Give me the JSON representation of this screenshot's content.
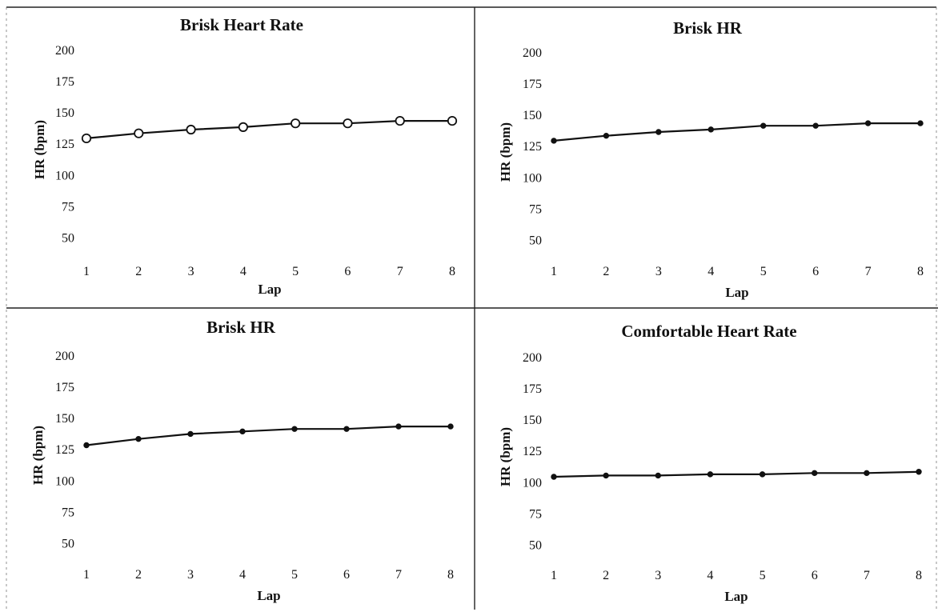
{
  "chart_data": [
    {
      "type": "line",
      "title": "Brisk Heart Rate",
      "xlabel": "Lap",
      "ylabel": "HR (bpm)",
      "x": [
        1,
        2,
        3,
        4,
        5,
        6,
        7,
        8
      ],
      "y_ticks": [
        50,
        75,
        100,
        125,
        150,
        175,
        200
      ],
      "ylim": [
        40,
        200
      ],
      "grid": false,
      "marker": "open-circle",
      "series": [
        {
          "values": [
            129,
            133,
            136,
            138,
            141,
            141,
            143,
            143
          ]
        }
      ]
    },
    {
      "type": "line",
      "title": "Brisk HR",
      "xlabel": "Lap",
      "ylabel": "HR (bpm)",
      "x": [
        1,
        2,
        3,
        4,
        5,
        6,
        7,
        8
      ],
      "y_ticks": [
        50,
        75,
        100,
        125,
        150,
        175,
        200
      ],
      "ylim": [
        40,
        200
      ],
      "grid": false,
      "marker": "dot",
      "series": [
        {
          "values": [
            129,
            133,
            136,
            138,
            141,
            141,
            143,
            143
          ]
        }
      ]
    },
    {
      "type": "line",
      "title": "Brisk HR",
      "xlabel": "Lap",
      "ylabel": "HR (bpm)",
      "x": [
        1,
        2,
        3,
        4,
        5,
        6,
        7,
        8
      ],
      "y_ticks": [
        50,
        75,
        100,
        125,
        150,
        175,
        200
      ],
      "ylim": [
        40,
        200
      ],
      "grid": false,
      "marker": "dot",
      "series": [
        {
          "values": [
            128,
            133,
            137,
            139,
            141,
            141,
            143,
            143
          ]
        }
      ]
    },
    {
      "type": "line",
      "title": "Comfortable Heart Rate",
      "xlabel": "Lap",
      "ylabel": "HR (bpm)",
      "x": [
        1,
        2,
        3,
        4,
        5,
        6,
        7,
        8
      ],
      "y_ticks": [
        50,
        75,
        100,
        125,
        150,
        175,
        200
      ],
      "ylim": [
        40,
        200
      ],
      "grid": false,
      "marker": "dot",
      "series": [
        {
          "values": [
            104,
            105,
            105,
            106,
            106,
            107,
            107,
            108
          ]
        }
      ]
    }
  ]
}
